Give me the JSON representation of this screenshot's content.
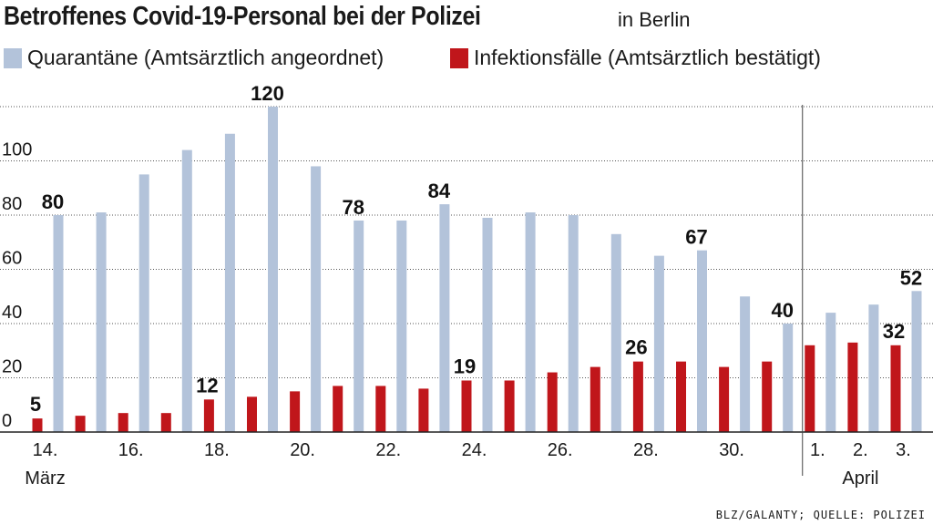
{
  "title": "Betroffenes Covid-19-Personal bei der Polizei",
  "subtitle": "in Berlin",
  "source": "BLZ/GALANTY; QUELLE: POLIZEI",
  "colors": {
    "quarantine": "#b3c3da",
    "infection": "#c0161b",
    "grid": "#555555"
  },
  "chart_data": {
    "type": "bar",
    "title": "Betroffenes Covid-19-Personal bei der Polizei",
    "subtitle": "in Berlin",
    "ylim": [
      0,
      120
    ],
    "yticks": [
      "0",
      "20",
      "40",
      "60",
      "80",
      "100"
    ],
    "grid": "horizontal dotted",
    "legend_position": "top",
    "categories": [
      "14.",
      "15.",
      "16.",
      "17.",
      "18.",
      "19.",
      "20.",
      "21.",
      "22.",
      "23.",
      "24.",
      "25.",
      "26.",
      "27.",
      "28.",
      "29.",
      "30.",
      "31.",
      "1.",
      "2.",
      "3."
    ],
    "x_tick_labels": [
      {
        "index": 0,
        "label": "14."
      },
      {
        "index": 2,
        "label": "16."
      },
      {
        "index": 4,
        "label": "18."
      },
      {
        "index": 6,
        "label": "20."
      },
      {
        "index": 8,
        "label": "22."
      },
      {
        "index": 10,
        "label": "24."
      },
      {
        "index": 12,
        "label": "26."
      },
      {
        "index": 14,
        "label": "28."
      },
      {
        "index": 16,
        "label": "30."
      },
      {
        "index": 18,
        "label": "1."
      },
      {
        "index": 19,
        "label": "2."
      },
      {
        "index": 20,
        "label": "3."
      }
    ],
    "month_labels": [
      {
        "index": 0,
        "label": "März"
      },
      {
        "index": 19,
        "label": "April"
      }
    ],
    "month_separator_after_index": 17,
    "series": [
      {
        "name": "Quarantäne (Amtsärztlich angeordnet)",
        "values": [
          80,
          81,
          95,
          104,
          110,
          120,
          98,
          78,
          78,
          84,
          79,
          81,
          80,
          73,
          65,
          67,
          50,
          40,
          44,
          47,
          52
        ],
        "labeled_indices": [
          0,
          5,
          7,
          9,
          15,
          17,
          20
        ]
      },
      {
        "name": "Infektionsfälle (Amtsärztlich bestätigt)",
        "values": [
          5,
          6,
          7,
          7,
          12,
          13,
          15,
          17,
          17,
          16,
          19,
          19,
          22,
          24,
          26,
          26,
          24,
          26,
          32,
          33,
          32
        ],
        "labeled_indices": [
          0,
          4,
          10,
          14,
          20
        ]
      }
    ]
  }
}
